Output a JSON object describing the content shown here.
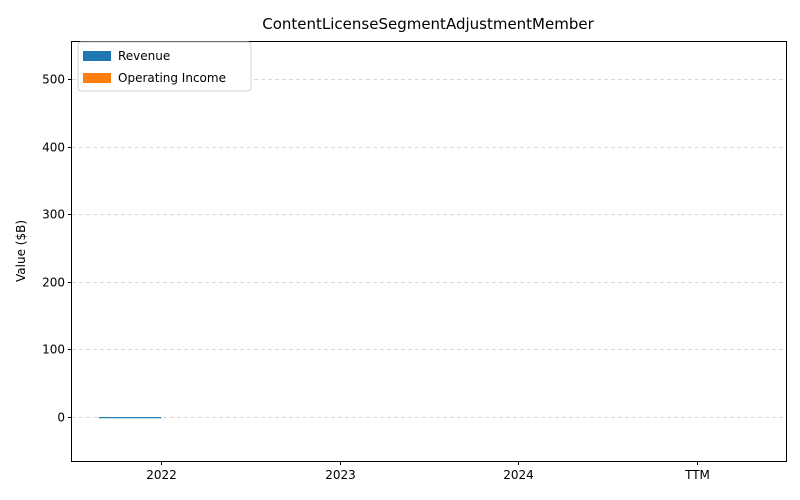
{
  "chart_data": {
    "type": "bar",
    "title": "ContentLicenseSegmentAdjustmentMember",
    "xlabel": "",
    "ylabel": "Value ($B)",
    "categories": [
      "2022",
      "2023",
      "2024",
      "TTM"
    ],
    "series": [
      {
        "name": "Revenue",
        "color": "#1f77b4",
        "values": [
          -0.5,
          null,
          null,
          null
        ]
      },
      {
        "name": "Operating Income",
        "color": "#ff7f0e",
        "values": [
          null,
          null,
          null,
          null
        ]
      }
    ],
    "ylim": [
      -65,
      555
    ],
    "yticks": [
      0,
      100,
      200,
      300,
      400,
      500
    ],
    "grid": "y-dashed",
    "legend_position": "top-left"
  }
}
